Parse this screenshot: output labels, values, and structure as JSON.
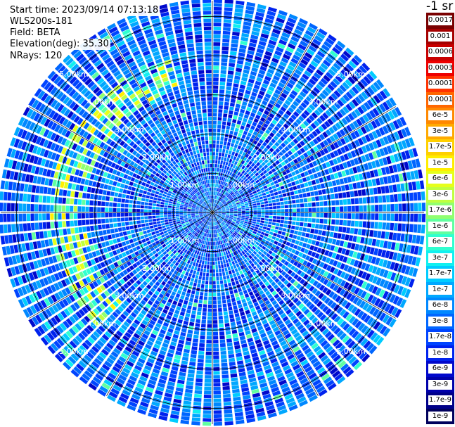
{
  "info": {
    "start_time": "Start time: 2023/09/14 07:13:18",
    "device": "WLS200s-181",
    "field": "Field: BETA",
    "elevation": "Elevation(deg): 35.30",
    "nrays": "NRays: 120"
  },
  "colorbar": {
    "unit": "-1 sr",
    "entries": [
      {
        "label": "0.0017",
        "color": "#7a0000"
      },
      {
        "label": "0.001",
        "color": "#a50000"
      },
      {
        "label": "0.0006",
        "color": "#c80000"
      },
      {
        "label": "0.0003",
        "color": "#ee0000"
      },
      {
        "label": "0.00017",
        "color": "#ff3300"
      },
      {
        "label": "0.0001",
        "color": "#ff6600"
      },
      {
        "label": "6e-5",
        "color": "#ff8800"
      },
      {
        "label": "3e-5",
        "color": "#ffaa00"
      },
      {
        "label": "1.7e-5",
        "color": "#ffd000"
      },
      {
        "label": "1e-5",
        "color": "#ffee00"
      },
      {
        "label": "6e-6",
        "color": "#e6ff1a"
      },
      {
        "label": "3e-6",
        "color": "#c0ff40"
      },
      {
        "label": "1.7e-6",
        "color": "#90ff70"
      },
      {
        "label": "1e-6",
        "color": "#60ffa0"
      },
      {
        "label": "6e-7",
        "color": "#30ffd0"
      },
      {
        "label": "3e-7",
        "color": "#10f0f0"
      },
      {
        "label": "1.7e-7",
        "color": "#00ccff"
      },
      {
        "label": "1e-7",
        "color": "#00a8ff"
      },
      {
        "label": "6e-8",
        "color": "#0088ff"
      },
      {
        "label": "3e-8",
        "color": "#0066ff"
      },
      {
        "label": "1.7e-8",
        "color": "#0044ff"
      },
      {
        "label": "1e-8",
        "color": "#0022ee"
      },
      {
        "label": "6e-9",
        "color": "#0008cc"
      },
      {
        "label": "3e-9",
        "color": "#0000aa"
      },
      {
        "label": "1.7e-9",
        "color": "#000088"
      },
      {
        "label": "1e-9",
        "color": "#00005c"
      }
    ]
  },
  "chart_data": {
    "type": "heatmap",
    "projection": "polar",
    "field": "BETA",
    "rays": 120,
    "range_rings_km": [
      1,
      2,
      3,
      4,
      5
    ],
    "ring_labels": [
      "1.00km",
      "2.00km",
      "3.00km",
      "4.00km",
      "5.00km"
    ],
    "max_range_km": 5.4,
    "azimuth_grid_deg": 30,
    "color_scale": "log",
    "value_range": [
      1e-09,
      0.0017
    ],
    "background_value": 3e-08,
    "enhanced_arc": {
      "range_km": [
        3.2,
        4.1
      ],
      "azimuth_deg": [
        225,
        345
      ],
      "value_range": [
        3e-07,
        1e-05
      ]
    }
  }
}
